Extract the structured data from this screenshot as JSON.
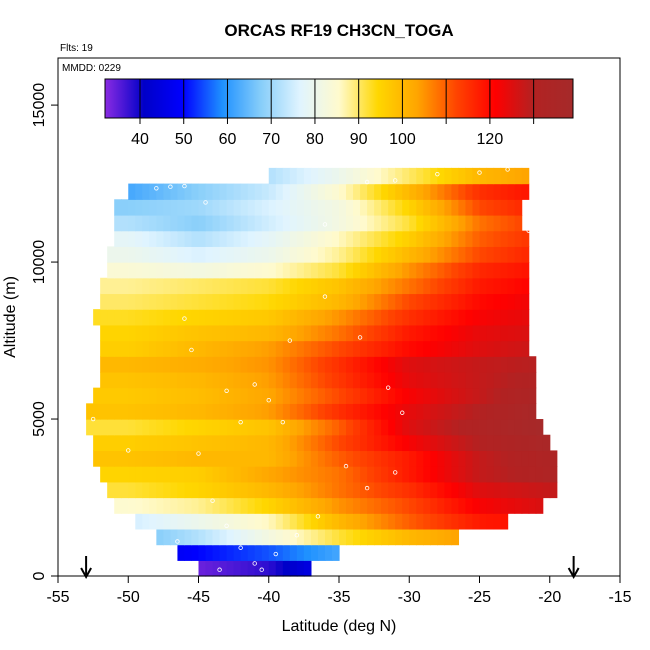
{
  "chart_data": {
    "type": "heatmap",
    "title": "ORCAS RF19 CH3CN_TOGA",
    "flights_note": "Flts: 19",
    "date_note": "MMDD: 0229",
    "xlabel": "Latitude (deg N)",
    "ylabel": "Altitude (m)",
    "xlim": [
      -55,
      -15
    ],
    "ylim": [
      0,
      16500
    ],
    "x_ticks": [
      -55,
      -50,
      -45,
      -40,
      -35,
      -30,
      -25,
      -20,
      -15
    ],
    "x_tick_labels": [
      "-55",
      "-50",
      "-45",
      "-40",
      "-35",
      "-30",
      "-25",
      "-20",
      "-15"
    ],
    "y_ticks": [
      0,
      5000,
      10000,
      15000
    ],
    "y_tick_labels": [
      "0",
      "5000",
      "10000",
      "15000"
    ],
    "colorbar": {
      "range": [
        32,
        139
      ],
      "labeled_ticks": [
        40,
        50,
        60,
        70,
        80,
        90,
        100,
        120
      ],
      "tick_labels": [
        "40",
        "50",
        "60",
        "70",
        "80",
        "90",
        "100",
        "120"
      ],
      "minor_ticks": [
        110,
        130
      ],
      "colors": [
        "#8a2be2",
        "#0000c8",
        "#0000ff",
        "#1e90ff",
        "#87cefa",
        "#e0f4ff",
        "#fffacd",
        "#ffd700",
        "#ffa500",
        "#ff4500",
        "#ff0000",
        "#b22222",
        "#a52a2a"
      ]
    },
    "arrow_markers_lat": [
      -53,
      -18.3
    ],
    "altitude_bins_m": [
      250,
      750,
      1250,
      1750,
      2250,
      2750,
      3250,
      3750,
      4250,
      4750,
      5250,
      5750,
      6250,
      6750,
      7250,
      7750,
      8250,
      8750,
      9250,
      9750,
      10250,
      10750,
      11250,
      11750,
      12250,
      12750
    ],
    "lat_extent_per_bin": [
      [
        -45,
        -37
      ],
      [
        -46.5,
        -35
      ],
      [
        -48,
        -26.5
      ],
      [
        -49.5,
        -23
      ],
      [
        -51,
        -20.5
      ],
      [
        -51.5,
        -19.5
      ],
      [
        -52,
        -19.5
      ],
      [
        -52.5,
        -19.5
      ],
      [
        -52.5,
        -20
      ],
      [
        -53,
        -20.5
      ],
      [
        -53,
        -21
      ],
      [
        -52.5,
        -21
      ],
      [
        -52,
        -21
      ],
      [
        -52,
        -21
      ],
      [
        -52,
        -21.5
      ],
      [
        -52,
        -21.5
      ],
      [
        -52.5,
        -21.5
      ],
      [
        -52,
        -21.5
      ],
      [
        -52,
        -21.5
      ],
      [
        -51.5,
        -21.5
      ],
      [
        -51.5,
        -21.5
      ],
      [
        -51,
        -21.5
      ],
      [
        -51,
        -22
      ],
      [
        -51,
        -22
      ],
      [
        -50,
        -21.5
      ],
      [
        -40,
        -21.5
      ]
    ],
    "lat_nodes": [
      -54,
      -50,
      -45,
      -40,
      -35,
      -30,
      -25,
      -20
    ],
    "values_per_bin": [
      [
        30,
        32,
        34,
        38,
        50,
        60,
        60,
        60
      ],
      [
        45,
        45,
        50,
        55,
        62,
        70,
        75,
        75
      ],
      [
        62,
        65,
        72,
        82,
        92,
        100,
        105,
        108
      ],
      [
        75,
        75,
        80,
        86,
        100,
        110,
        118,
        120
      ],
      [
        85,
        85,
        88,
        95,
        105,
        112,
        122,
        126
      ],
      [
        92,
        92,
        95,
        100,
        108,
        115,
        125,
        128
      ],
      [
        95,
        95,
        96,
        103,
        108,
        118,
        128,
        132
      ],
      [
        98,
        98,
        100,
        100,
        110,
        118,
        128,
        133
      ],
      [
        96,
        96,
        98,
        100,
        112,
        122,
        130,
        136
      ],
      [
        92,
        92,
        95,
        98,
        110,
        125,
        132,
        139
      ],
      [
        98,
        98,
        100,
        104,
        115,
        124,
        130,
        138
      ],
      [
        97,
        97,
        99,
        103,
        112,
        122,
        128,
        135
      ],
      [
        98,
        98,
        100,
        104,
        114,
        124,
        128,
        132
      ],
      [
        100,
        100,
        102,
        105,
        115,
        125,
        128,
        130
      ],
      [
        96,
        96,
        100,
        104,
        112,
        120,
        125,
        128
      ],
      [
        95,
        95,
        98,
        100,
        108,
        118,
        124,
        126
      ],
      [
        93,
        93,
        95,
        97,
        105,
        115,
        122,
        125
      ],
      [
        90,
        90,
        92,
        94,
        100,
        112,
        120,
        124
      ],
      [
        88,
        88,
        90,
        92,
        98,
        108,
        118,
        122
      ],
      [
        84,
        84,
        82,
        85,
        92,
        105,
        116,
        120
      ],
      [
        80,
        80,
        76,
        80,
        88,
        100,
        112,
        118
      ],
      [
        78,
        78,
        72,
        78,
        86,
        96,
        110,
        116
      ],
      [
        72,
        72,
        68,
        75,
        82,
        92,
        108,
        115
      ],
      [
        68,
        68,
        70,
        76,
        82,
        95,
        112,
        118
      ],
      [
        62,
        62,
        68,
        74,
        85,
        100,
        115,
        120
      ],
      [
        70,
        70,
        70,
        72,
        80,
        90,
        100,
        105
      ]
    ],
    "sample_points": [
      [
        -48,
        12350
      ],
      [
        -47,
        12400
      ],
      [
        -46,
        12420
      ],
      [
        -44.5,
        11900
      ],
      [
        -36,
        11200
      ],
      [
        -33,
        12550
      ],
      [
        -31,
        12600
      ],
      [
        -28,
        12800
      ],
      [
        -25,
        12850
      ],
      [
        -23,
        12950
      ],
      [
        -21.5,
        11000
      ],
      [
        -21,
        9300
      ],
      [
        -20.5,
        8200
      ],
      [
        -20,
        7300
      ],
      [
        -19.5,
        6500
      ],
      [
        -19,
        5500
      ],
      [
        -19,
        4500
      ],
      [
        -19,
        3500
      ],
      [
        -18.7,
        2500
      ],
      [
        -18.5,
        1700
      ],
      [
        -46,
        8200
      ],
      [
        -45.5,
        7200
      ],
      [
        -43,
        5900
      ],
      [
        -42,
        4900
      ],
      [
        -41,
        6100
      ],
      [
        -40,
        5600
      ],
      [
        -39,
        4900
      ],
      [
        -38.5,
        7500
      ],
      [
        -36,
        8900
      ],
      [
        -33.5,
        7600
      ],
      [
        -31.5,
        6000
      ],
      [
        -30.5,
        5200
      ],
      [
        -45,
        3900
      ],
      [
        -44,
        2400
      ],
      [
        -43,
        1600
      ],
      [
        -42,
        900
      ],
      [
        -41,
        400
      ],
      [
        -39.5,
        700
      ],
      [
        -38,
        1300
      ],
      [
        -36.5,
        1900
      ],
      [
        -33,
        2800
      ],
      [
        -31,
        3300
      ],
      [
        -46.5,
        1100
      ],
      [
        -47.5,
        700
      ],
      [
        -43.5,
        200
      ],
      [
        -40.5,
        200
      ],
      [
        -36,
        200
      ],
      [
        -50,
        4000
      ],
      [
        -52.5,
        5000
      ],
      [
        -34.5,
        3500
      ]
    ]
  }
}
